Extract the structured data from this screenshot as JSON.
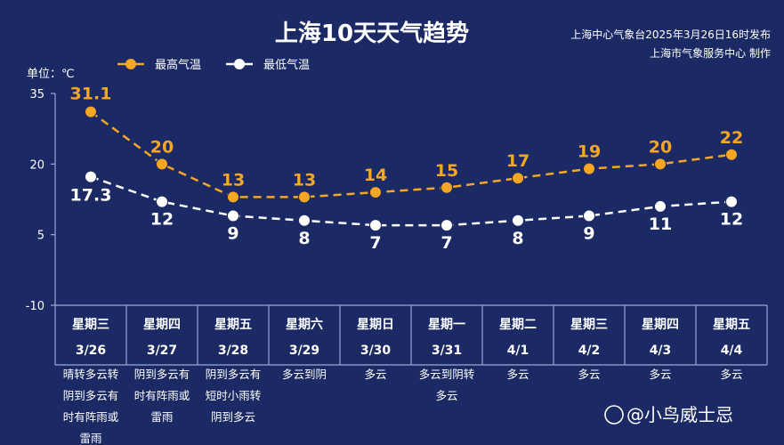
{
  "title": "上海10天天气趋势",
  "source_line1": "上海中心气象台2025年3月26日16时发布",
  "source_line2": "上海市气象服务中心 制作",
  "unit_label": "单位：℃",
  "watermark": "@小鸟威士忌",
  "colors": {
    "background": "#1b2a64",
    "high": "#f5a623",
    "low": "#ffffff",
    "table_line": "#9aa6d6"
  },
  "chart_data": {
    "type": "line",
    "ylim": [
      -10,
      35
    ],
    "yticks": [
      "35",
      "20",
      "5",
      "-10"
    ],
    "ytick_values": [
      35,
      20,
      5,
      -10
    ],
    "legend_position": "top-left",
    "categories": [
      "3/26",
      "3/27",
      "3/28",
      "3/29",
      "3/30",
      "3/31",
      "4/1",
      "4/2",
      "4/3",
      "4/4"
    ],
    "series": [
      {
        "name": "最高气温",
        "values": [
          31.1,
          20,
          13,
          13,
          14,
          15,
          17,
          19,
          20,
          22
        ],
        "labels": [
          "31.1",
          "20",
          "13",
          "13",
          "14",
          "15",
          "17",
          "19",
          "20",
          "22"
        ]
      },
      {
        "name": "最低气温",
        "values": [
          17.3,
          12,
          9,
          8,
          7,
          7,
          8,
          9,
          11,
          12
        ],
        "labels": [
          "17.3",
          "12",
          "9",
          "8",
          "7",
          "7",
          "8",
          "9",
          "11",
          "12"
        ]
      }
    ]
  },
  "days": [
    {
      "weekday": "星期三",
      "date": "3/26",
      "weather": [
        "晴转多云转",
        "阴到多云有",
        "时有阵雨或",
        "雷雨"
      ]
    },
    {
      "weekday": "星期四",
      "date": "3/27",
      "weather": [
        "阴到多云有",
        "时有阵雨或",
        "雷雨"
      ]
    },
    {
      "weekday": "星期五",
      "date": "3/28",
      "weather": [
        "阴到多云有",
        "短时小雨转",
        "阴到多云"
      ]
    },
    {
      "weekday": "星期六",
      "date": "3/29",
      "weather": [
        "多云到阴"
      ]
    },
    {
      "weekday": "星期日",
      "date": "3/30",
      "weather": [
        "多云"
      ]
    },
    {
      "weekday": "星期一",
      "date": "3/31",
      "weather": [
        "多云到阴转",
        "多云"
      ]
    },
    {
      "weekday": "星期二",
      "date": "4/1",
      "weather": [
        "多云"
      ]
    },
    {
      "weekday": "星期三",
      "date": "4/2",
      "weather": [
        "多云"
      ]
    },
    {
      "weekday": "星期四",
      "date": "4/3",
      "weather": [
        "多云"
      ]
    },
    {
      "weekday": "星期五",
      "date": "4/4",
      "weather": [
        "多云"
      ]
    }
  ]
}
